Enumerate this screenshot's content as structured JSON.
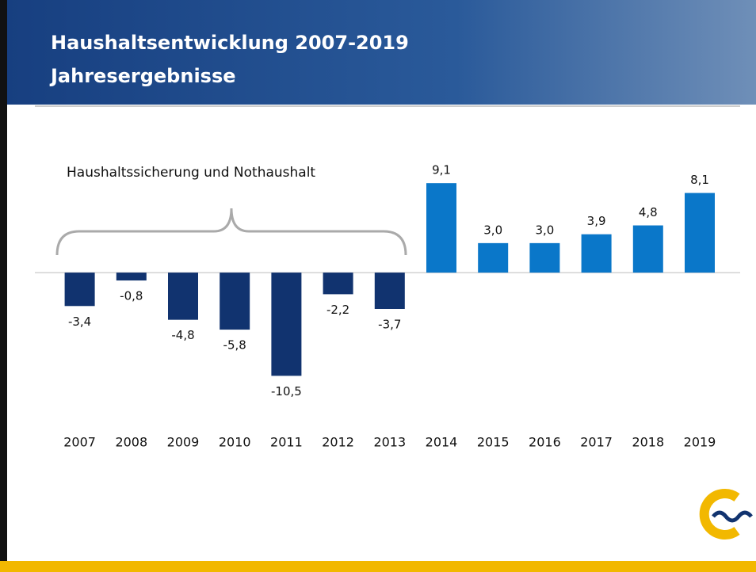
{
  "chart_data": {
    "type": "bar",
    "title": "Haushaltsentwicklung 2007-2019",
    "subtitle": "Jahresergebnisse",
    "annotation": "Haushaltssicherung und Nothaushalt",
    "categories": [
      "2007",
      "2008",
      "2009",
      "2010",
      "2011",
      "2012",
      "2013",
      "2014",
      "2015",
      "2016",
      "2017",
      "2018",
      "2019"
    ],
    "values": [
      -3.4,
      -0.8,
      -4.8,
      -5.8,
      -10.5,
      -2.2,
      -3.7,
      9.1,
      3.0,
      3.0,
      3.9,
      4.8,
      8.1
    ],
    "value_labels": [
      "-3,4",
      "-0,8",
      "-4,8",
      "-5,8",
      "-10,5",
      "-2,2",
      "-3,7",
      "9,1",
      "3,0",
      "3,0",
      "3,9",
      "4,8",
      "8,1"
    ],
    "colors": [
      "#11336f",
      "#11336f",
      "#11336f",
      "#11336f",
      "#11336f",
      "#11336f",
      "#11336f",
      "#0a77c9",
      "#0a77c9",
      "#0a77c9",
      "#0a77c9",
      "#0a77c9",
      "#0a77c9"
    ],
    "ylim": [
      -12,
      10
    ]
  }
}
